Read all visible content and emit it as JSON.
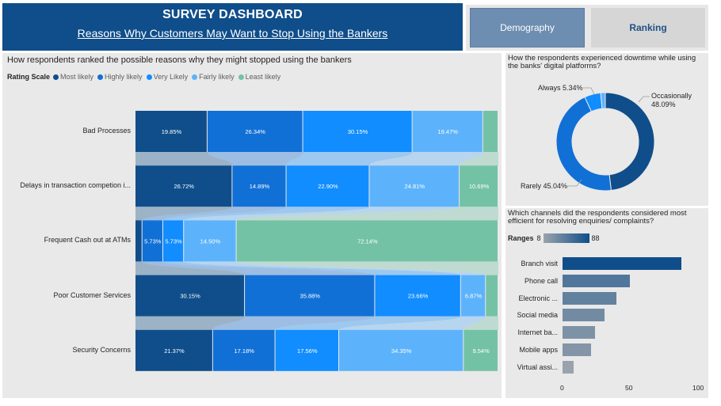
{
  "header": {
    "title": "SURVEY DASHBOARD",
    "subtitle": "Reasons Why Customers May Want to Stop Using the Bankers"
  },
  "nav": {
    "demography": "Demography",
    "ranking": "Ranking"
  },
  "ranking_chart": {
    "title": "How respondents ranked the possible reasons why they might stopped using the bankers",
    "legend_title": "Rating Scale",
    "legend": [
      {
        "label": "Most likely",
        "color": "#0f4e8a"
      },
      {
        "label": "Highly likely",
        "color": "#1170d6"
      },
      {
        "label": "Very Likely",
        "color": "#118dff"
      },
      {
        "label": "Fairly likely",
        "color": "#5db3fb"
      },
      {
        "label": "Least likely",
        "color": "#74c2a5"
      }
    ]
  },
  "downtime": {
    "title": "How the respondents experienced downtime while using the banks' digital platforms?",
    "always": "Always 5.34%",
    "occasionally": "Occasionally",
    "occasionally_pct": "48.09%",
    "rarely": "Rarely 45.04%"
  },
  "channels": {
    "title": "Which channels did the respondents considered most efficient for resolving enquiries/ complaints?",
    "ranges_label": "Ranges",
    "range_min": "8",
    "range_max": "88",
    "axis": [
      "0",
      "50",
      "100"
    ]
  },
  "chart_data": [
    {
      "type": "bar",
      "title": "How respondents ranked the possible reasons why they might stopped using the bankers",
      "categories": [
        "Bad Processes",
        "Delays in transaction competion i...",
        "Frequent Cash out at ATMs",
        "Poor Customer Services",
        "Security Concerns"
      ],
      "series": [
        {
          "name": "Most likely",
          "values": [
            19.85,
            26.72,
            1.9,
            30.15,
            21.37
          ],
          "labels": [
            "19.85%",
            "26.72%",
            "",
            "30.15%",
            "21.37%"
          ]
        },
        {
          "name": "Highly likely",
          "values": [
            26.34,
            14.89,
            5.73,
            35.88,
            17.18
          ],
          "labels": [
            "26.34%",
            "14.89%",
            "5.73%",
            "35.88%",
            "17.18%"
          ]
        },
        {
          "name": "Very Likely",
          "values": [
            30.15,
            22.9,
            5.73,
            23.66,
            17.56
          ],
          "labels": [
            "30.15%",
            "22.90%",
            "5.73%",
            "23.66%",
            "17.56%"
          ]
        },
        {
          "name": "Fairly likely",
          "values": [
            19.47,
            24.81,
            14.5,
            6.87,
            34.35
          ],
          "labels": [
            "19.47%",
            "24.81%",
            "14.50%",
            "6.87%",
            "34.35%"
          ]
        },
        {
          "name": "Least likely",
          "values": [
            4.19,
            10.69,
            72.14,
            3.44,
            9.54
          ],
          "labels": [
            "",
            "10.69%",
            "72.14%",
            "",
            "9.54%"
          ]
        }
      ]
    },
    {
      "type": "pie",
      "title": "How the respondents experienced downtime while using the banks' digital platforms?",
      "categories": [
        "Occasionally",
        "Rarely",
        "Always",
        "Other"
      ],
      "values": [
        48.09,
        45.04,
        5.34,
        1.53
      ]
    },
    {
      "type": "bar",
      "title": "Which channels did the respondents considered most efficient for resolving enquiries/ complaints?",
      "categories": [
        "Branch visit",
        "Phone call",
        "Electronic ...",
        "Social media",
        "Internet ba...",
        "Mobile apps",
        "Virtual assi..."
      ],
      "values": [
        88,
        50,
        40,
        31,
        24,
        21,
        8
      ],
      "xlim": [
        0,
        100
      ]
    }
  ]
}
